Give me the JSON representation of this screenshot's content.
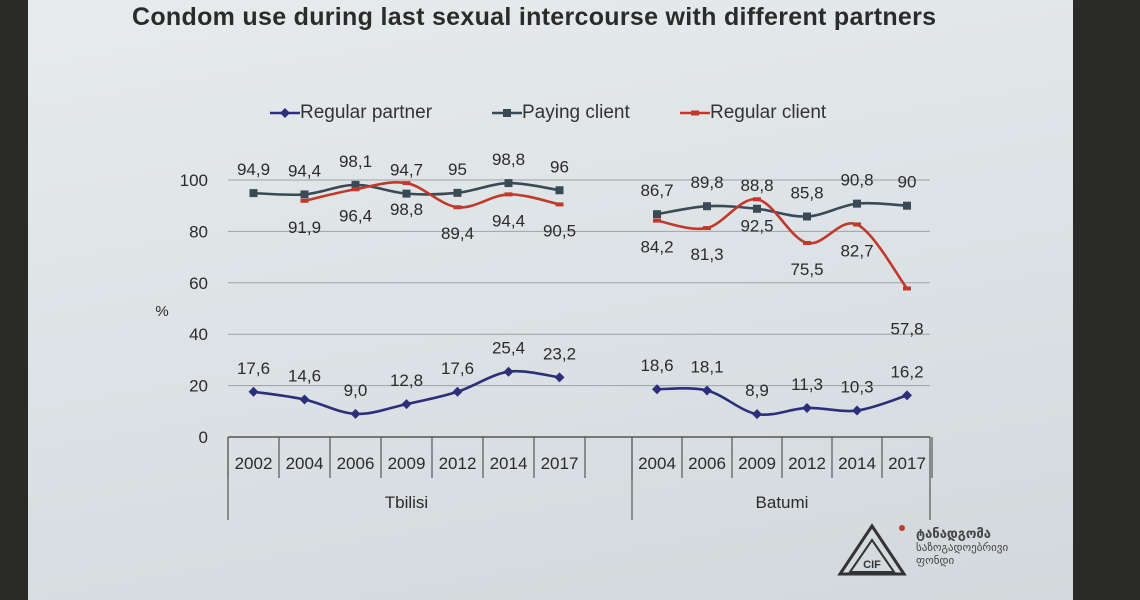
{
  "title": "Condom use during last sexual intercourse with different partners",
  "chart_data": {
    "type": "line",
    "ylabel": "%",
    "ylim": [
      0,
      100
    ],
    "yticks": [
      "0",
      "20",
      "40",
      "60",
      "80",
      "100"
    ],
    "legend_position": "top",
    "groups": [
      {
        "name": "Tbilisi",
        "categories": [
          "2002",
          "2004",
          "2006",
          "2009",
          "2012",
          "2014",
          "2017"
        ],
        "series": [
          {
            "name": "Regular partner",
            "color": "#2d2f7a",
            "marker": "diamond",
            "values": [
              17.6,
              14.6,
              9.0,
              12.8,
              17.6,
              25.4,
              23.2
            ],
            "labels": [
              "17,6",
              "14,6",
              "9,0",
              "12,8",
              "17,6",
              "25,4",
              "23,2"
            ]
          },
          {
            "name": "Paying client",
            "color": "#3a4a55",
            "marker": "square",
            "values": [
              94.9,
              94.4,
              98.1,
              94.7,
              95,
              98.8,
              96
            ],
            "labels": [
              "94,9",
              "94,4",
              "98,1",
              "94,7",
              "95",
              "98,8",
              "96"
            ]
          },
          {
            "name": "Regular client",
            "color": "#c0392b",
            "marker": "dash",
            "values": [
              null,
              91.9,
              96.4,
              98.8,
              89.4,
              94.4,
              90.5
            ],
            "labels": [
              null,
              "91,9",
              "96,4",
              "98,8",
              "89,4",
              "94,4",
              "90,5"
            ]
          }
        ]
      },
      {
        "name": "Batumi",
        "categories": [
          "2004",
          "2006",
          "2009",
          "2012",
          "2014",
          "2017"
        ],
        "series": [
          {
            "name": "Regular partner",
            "color": "#2d2f7a",
            "marker": "diamond",
            "values": [
              18.6,
              18.1,
              8.9,
              11.3,
              10.3,
              16.2
            ],
            "labels": [
              "18,6",
              "18,1",
              "8,9",
              "11,3",
              "10,3",
              "16,2"
            ]
          },
          {
            "name": "Paying client",
            "color": "#3a4a55",
            "marker": "square",
            "values": [
              86.7,
              89.8,
              88.8,
              85.8,
              90.8,
              90
            ],
            "labels": [
              "86,7",
              "89,8",
              "88,8",
              "85,8",
              "90,8",
              "90"
            ]
          },
          {
            "name": "Regular client",
            "color": "#c0392b",
            "marker": "dash",
            "values": [
              84.2,
              81.3,
              92.5,
              75.5,
              82.7,
              57.8
            ],
            "labels": [
              "84,2",
              "81,3",
              "92,5",
              "75,5",
              "82,7",
              "57,8"
            ]
          }
        ]
      }
    ]
  },
  "logo": {
    "line1": "ტანადგომა",
    "line2": "საზოგადოებრივი",
    "line3": "ფონდი",
    "mark": "CIF"
  }
}
